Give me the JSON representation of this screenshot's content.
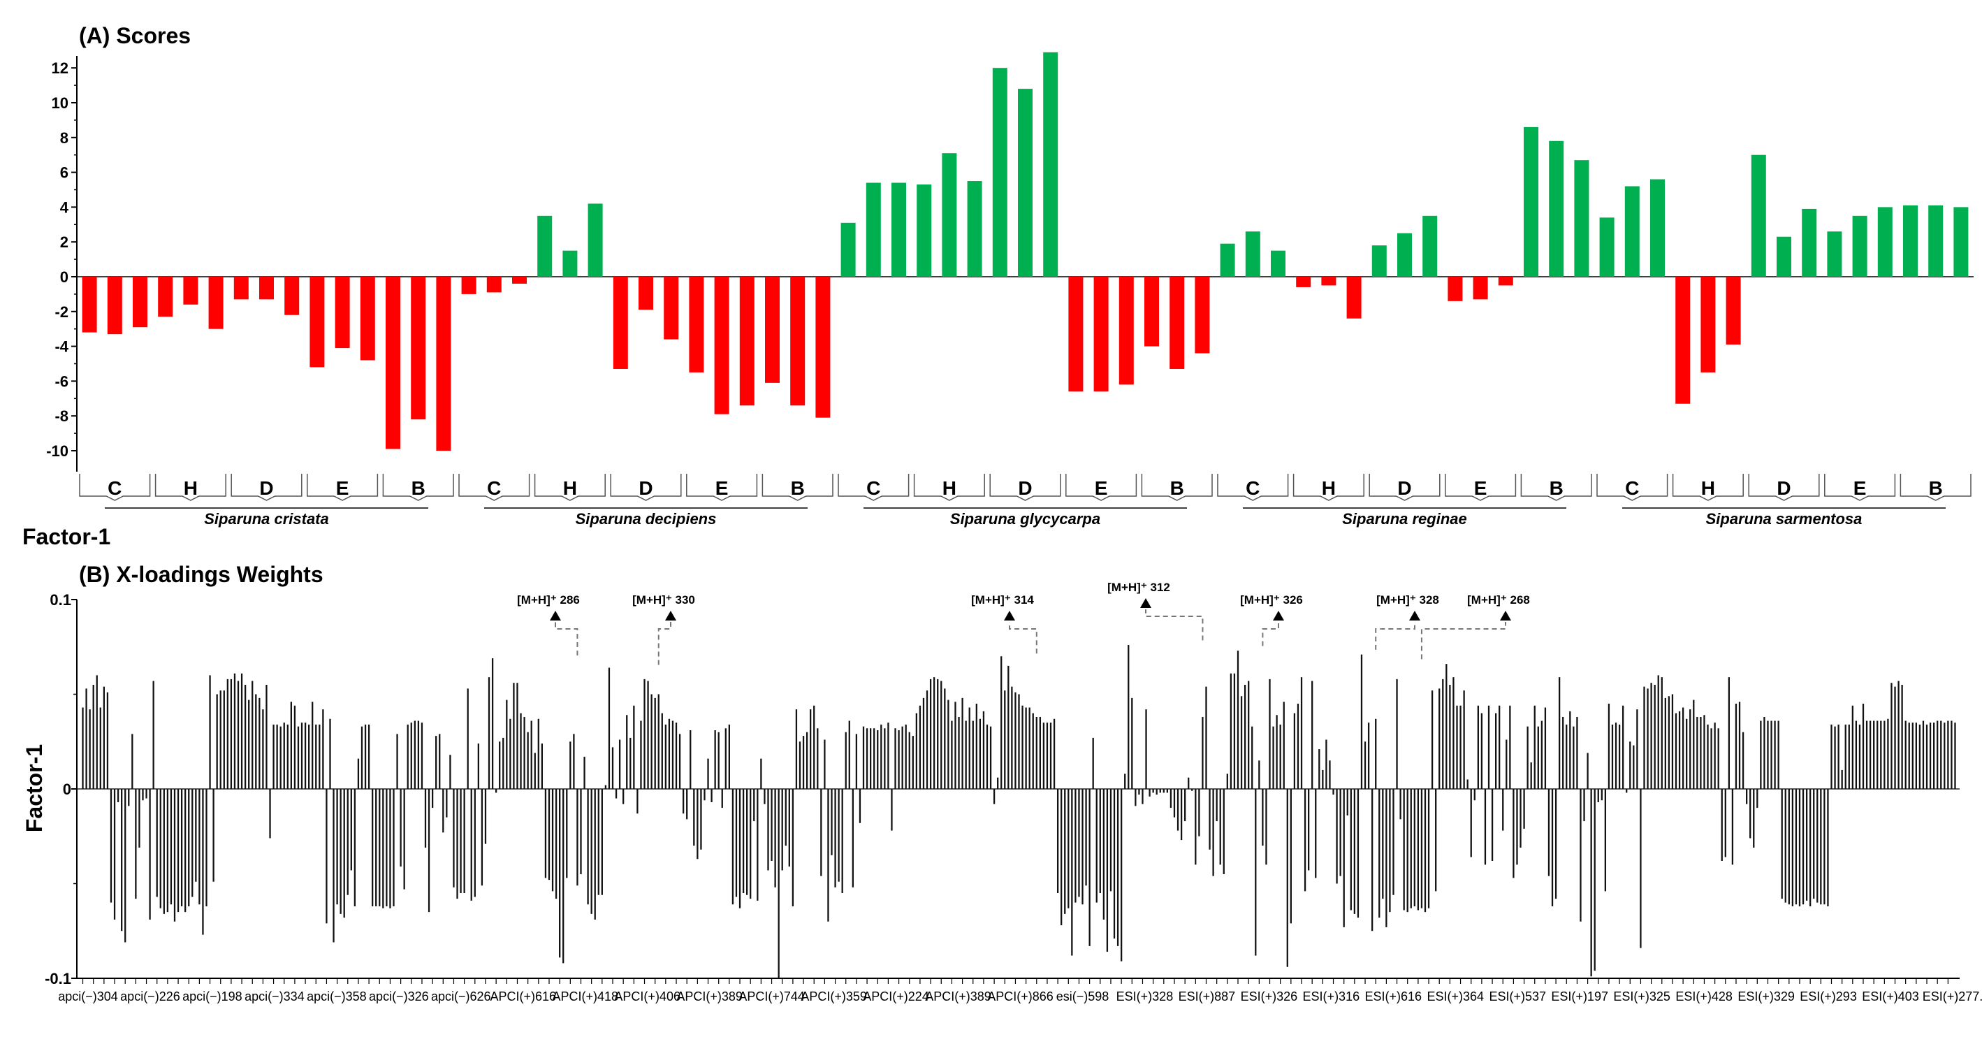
{
  "chart_data": [
    {
      "type": "bar",
      "title": "(A) Scores",
      "ylabel": "Factor-1",
      "ylim": [
        -11,
        13
      ],
      "yticks": [
        12,
        10,
        8,
        6,
        4,
        2,
        0,
        -2,
        -4,
        -6,
        -8,
        -10
      ],
      "colors": {
        "positive": "#00b050",
        "negative": "#ff0000"
      },
      "species": [
        "Siparuna cristata",
        "Siparuna decipiens",
        "Siparuna glycycarpa",
        "Siparuna reginae",
        "Siparuna sarmentosa"
      ],
      "groups": [
        "C",
        "H",
        "D",
        "E",
        "B"
      ],
      "values": [
        -3.2,
        -3.3,
        -2.9,
        -2.3,
        -1.6,
        -3.0,
        -1.3,
        -1.3,
        -2.2,
        -5.2,
        -4.1,
        -4.8,
        -9.9,
        -8.2,
        -10.0,
        -1.0,
        -0.9,
        -0.4,
        3.5,
        1.5,
        4.2,
        -5.3,
        -1.9,
        -3.6,
        -5.5,
        -7.9,
        -7.4,
        -6.1,
        -7.4,
        -8.1,
        3.1,
        5.4,
        5.4,
        5.3,
        7.1,
        5.5,
        12.0,
        10.8,
        12.9,
        -6.6,
        -6.6,
        -6.2,
        -4.0,
        -5.3,
        -4.4,
        1.9,
        2.6,
        1.5,
        -0.6,
        -0.5,
        -2.4,
        1.8,
        2.5,
        3.5,
        -1.4,
        -1.3,
        -0.5,
        8.6,
        7.8,
        6.7,
        3.4,
        5.2,
        5.6,
        -7.3,
        -5.5,
        -3.9,
        7.0,
        2.3,
        3.9,
        2.6,
        3.5,
        4.0,
        4.1,
        4.1,
        4.0
      ]
    },
    {
      "type": "bar",
      "title": "(B) X-loadings Weights",
      "ylabel": "Factor-1",
      "ylim": [
        -0.1,
        0.1
      ],
      "yticks": [
        "0.1",
        "0",
        "-0.1"
      ],
      "xtick_labels": [
        "apci(−)304",
        "apci(−)226",
        "apci(−)198",
        "apci(−)334",
        "apci(−)358",
        "apci(−)326",
        "apci(−)626",
        "APCI(+)616",
        "APCI(+)418",
        "APCI(+)406",
        "APCI(+)389",
        "APCI(+)744",
        "APCI(+)359",
        "APCI(+)224",
        "APCI(+)389",
        "APCI(+)866",
        "esi(−)598",
        "ESI(+)328",
        "ESI(+)887",
        "ESI(+)326",
        "ESI(+)316",
        "ESI(+)616",
        "ESI(+)364",
        "ESI(+)537",
        "ESI(+)197",
        "ESI(+)325",
        "ESI(+)428",
        "ESI(+)329",
        "ESI(+)293",
        "ESI(+)403",
        "ESI(+)277."
      ],
      "annotations": [
        {
          "text": "[M+H]⁺ 286",
          "value": 0.069
        },
        {
          "text": "[M+H]⁺ 330",
          "value": 0.064
        },
        {
          "text": "[M+H]⁺ 314",
          "value": 0.07
        },
        {
          "text": "[M+H]⁺ 312",
          "value": 0.077
        },
        {
          "text": "[M+H]⁺ 326",
          "value": 0.074
        },
        {
          "text": "[M+H]⁺ 328",
          "value": 0.072
        },
        {
          "text": "[M+H]⁺ 268",
          "value": 0.067
        }
      ],
      "values": [
        0.043,
        0.053,
        0.042,
        0.055,
        0.06,
        0.043,
        0.054,
        0.051,
        -0.06,
        -0.069,
        -0.007,
        -0.075,
        -0.081,
        -0.009,
        0.029,
        -0.058,
        -0.031,
        -0.006,
        -0.005,
        -0.069,
        0.057,
        -0.057,
        -0.063,
        -0.066,
        -0.065,
        -0.061,
        -0.07,
        -0.065,
        -0.062,
        -0.065,
        -0.062,
        -0.057,
        -0.049,
        -0.061,
        -0.077,
        -0.062,
        0.06,
        -0.049,
        0.05,
        0.052,
        0.052,
        0.058,
        0.058,
        0.061,
        0.057,
        0.061,
        0.055,
        0.047,
        0.057,
        0.05,
        0.048,
        0.042,
        0.055,
        -0.026,
        0.034,
        0.034,
        0.033,
        0.035,
        0.034,
        0.046,
        0.044,
        0.033,
        0.035,
        0.035,
        0.034,
        0.046,
        0.034,
        0.034,
        0.042,
        -0.071,
        0.037,
        -0.081,
        -0.061,
        -0.066,
        -0.068,
        -0.056,
        -0.043,
        -0.062,
        0.016,
        0.033,
        0.034,
        0.034,
        -0.062,
        -0.062,
        -0.062,
        -0.063,
        -0.062,
        -0.063,
        -0.062,
        0.029,
        -0.041,
        -0.053,
        0.034,
        0.035,
        0.036,
        0.036,
        0.035,
        -0.031,
        -0.065,
        -0.01,
        0.028,
        0.029,
        -0.023,
        -0.015,
        0.018,
        -0.052,
        -0.058,
        -0.055,
        -0.055,
        0.053,
        -0.059,
        -0.057,
        0.024,
        -0.051,
        -0.029,
        0.059,
        0.069,
        -0.002,
        0.025,
        0.027,
        0.047,
        0.037,
        0.056,
        0.056,
        0.04,
        0.038,
        0.03,
        0.036,
        0.019,
        0.037,
        0.024,
        -0.047,
        -0.048,
        -0.054,
        -0.058,
        -0.089,
        -0.092,
        -0.047,
        0.025,
        0.029,
        -0.051,
        -0.045,
        0.017,
        -0.061,
        -0.066,
        -0.069,
        -0.056,
        -0.056,
        0.002,
        0.064,
        0.022,
        -0.005,
        0.026,
        -0.008,
        0.039,
        0.027,
        0.044,
        -0.013,
        0.036,
        0.058,
        0.057,
        0.05,
        0.048,
        0.05,
        0.04,
        0.034,
        0.037,
        0.036,
        0.035,
        0.029,
        -0.013,
        -0.016,
        0.031,
        -0.03,
        -0.037,
        -0.032,
        -0.006,
        0.016,
        -0.007,
        0.031,
        0.03,
        -0.01,
        0.032,
        0.034,
        -0.061,
        -0.057,
        -0.063,
        -0.055,
        -0.056,
        -0.058,
        -0.017,
        -0.059,
        0.016,
        -0.008,
        -0.043,
        -0.038,
        -0.052,
        -0.1,
        -0.043,
        -0.03,
        -0.041,
        -0.062,
        0.042,
        0.025,
        0.028,
        0.03,
        0.042,
        0.044,
        0.032,
        -0.046,
        0.026,
        -0.07,
        -0.035,
        -0.052,
        -0.049,
        -0.055,
        0.03,
        0.036,
        -0.052,
        0.029,
        -0.018,
        0.033,
        0.032,
        0.032,
        0.032,
        0.031,
        0.034,
        0.032,
        0.035,
        -0.022,
        0.032,
        0.031,
        0.033,
        0.034,
        0.03,
        0.028,
        0.04,
        0.044,
        0.048,
        0.052,
        0.058,
        0.059,
        0.058,
        0.057,
        0.053,
        0.047,
        0.036,
        0.046,
        0.038,
        0.048,
        0.036,
        0.043,
        0.036,
        0.045,
        0.037,
        0.041,
        0.034,
        0.033,
        -0.008,
        0.006,
        0.07,
        0.052,
        0.065,
        0.054,
        0.051,
        0.05,
        0.044,
        0.043,
        0.043,
        0.04,
        0.038,
        0.038,
        0.035,
        0.035,
        0.035,
        0.037,
        -0.055,
        -0.072,
        -0.066,
        -0.063,
        -0.088,
        -0.06,
        -0.057,
        -0.061,
        -0.051,
        -0.083,
        0.027,
        -0.06,
        -0.055,
        -0.069,
        -0.086,
        -0.054,
        -0.079,
        -0.083,
        -0.091,
        0.008,
        0.076,
        0.048,
        -0.009,
        -0.003,
        -0.008,
        0.042,
        -0.004,
        -0.002,
        -0.003,
        -0.002,
        -0.002,
        -0.002,
        -0.01,
        -0.015,
        -0.022,
        -0.027,
        -0.017,
        0.006,
        -0.001,
        -0.04,
        -0.025,
        0.038,
        0.054,
        -0.032,
        -0.046,
        -0.017,
        -0.04,
        -0.045,
        0.008,
        0.061,
        0.061,
        0.073,
        0.049,
        0.055,
        0.057,
        0.033,
        -0.088,
        0.015,
        -0.03,
        -0.04,
        0.058,
        0.033,
        0.039,
        0.034,
        0.046,
        -0.094,
        -0.071,
        0.04,
        0.045,
        0.059,
        -0.054,
        -0.043,
        0.057,
        -0.047,
        0.021,
        0.01,
        0.026,
        0.015,
        -0.003,
        -0.05,
        -0.046,
        -0.073,
        -0.014,
        -0.064,
        -0.066,
        -0.068,
        0.071,
        0.025,
        0.035,
        -0.075,
        0.037,
        -0.068,
        -0.058,
        -0.073,
        -0.065,
        -0.056,
        0.058,
        -0.016,
        -0.064,
        -0.065,
        -0.063,
        -0.062,
        -0.064,
        -0.063,
        -0.065,
        -0.063,
        0.052,
        -0.054,
        0.053,
        0.058,
        0.066,
        0.055,
        0.059,
        0.044,
        0.044,
        0.052,
        0.005,
        -0.036,
        -0.006,
        0.044,
        0.04,
        -0.04,
        0.044,
        -0.038,
        0.04,
        0.044,
        -0.022,
        0.026,
        0.044,
        -0.047,
        -0.04,
        -0.031,
        -0.021,
        0.033,
        0.014,
        0.044,
        0.033,
        0.036,
        0.043,
        -0.046,
        -0.062,
        -0.058,
        0.059,
        0.038,
        0.034,
        0.041,
        0.033,
        0.038,
        -0.07,
        -0.017,
        0.019,
        -0.099,
        -0.096,
        -0.007,
        -0.006,
        -0.054,
        0.045,
        0.034,
        0.035,
        0.034,
        0.044,
        -0.002,
        0.025,
        0.023,
        0.042,
        -0.084,
        0.054,
        0.053,
        0.056,
        0.055,
        0.06,
        0.059,
        0.048,
        0.049,
        0.05,
        0.04,
        0.041,
        0.043,
        0.037,
        0.042,
        0.047,
        0.038,
        0.038,
        0.039,
        0.034,
        0.032,
        0.035,
        0.032,
        -0.038,
        -0.036,
        0.059,
        -0.04,
        0.045,
        0.046,
        0.03,
        -0.008,
        -0.026,
        -0.031,
        -0.01,
        0.036,
        0.038,
        0.036,
        0.036,
        0.036,
        0.036,
        -0.058,
        -0.06,
        -0.061,
        -0.062,
        -0.061,
        -0.062,
        -0.061,
        -0.059,
        -0.062,
        -0.058,
        -0.06,
        -0.061,
        -0.061,
        -0.062,
        0.034,
        0.033,
        0.034,
        0.01,
        0.034,
        0.034,
        0.044,
        0.036,
        0.034,
        0.045,
        0.036,
        0.036,
        0.036,
        0.036,
        0.036,
        0.036,
        0.037,
        0.056,
        0.054,
        0.057,
        0.055,
        0.036,
        0.035,
        0.035,
        0.035,
        0.034,
        0.036,
        0.034,
        0.035,
        0.035,
        0.036,
        0.036,
        0.035,
        0.036,
        0.036,
        0.035
      ]
    }
  ]
}
